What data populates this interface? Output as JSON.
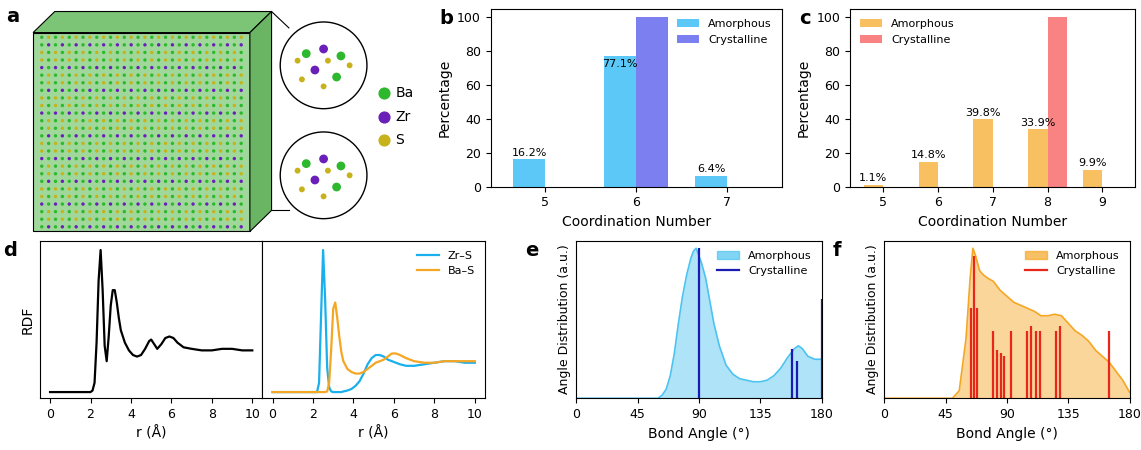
{
  "structure": {
    "panel": "a",
    "legend": [
      {
        "name": "Ba",
        "color": "#2db82d"
      },
      {
        "name": "Zr",
        "color": "#6a1fb8"
      },
      {
        "name": "S",
        "color": "#c7b21b"
      }
    ]
  },
  "chart_data": [
    {
      "panel": "b",
      "type": "bar",
      "xlabel": "Coordination Number",
      "ylabel": "Percentage",
      "x": [
        5,
        6,
        7
      ],
      "xlim": [
        4.4,
        7.6
      ],
      "xticks": [
        5,
        6,
        7
      ],
      "ylim": [
        0,
        105
      ],
      "yticks": [
        0,
        20,
        40,
        60,
        80,
        100
      ],
      "legend": "upper right",
      "data_labels": true,
      "series": [
        {
          "name": "Amorphous",
          "color": "#5bc8f7",
          "values": [
            16.2,
            77.1,
            6.4
          ],
          "value_labels": [
            "16.2%",
            "77.1%",
            "6.4%"
          ]
        },
        {
          "name": "Crystalline",
          "color": "#7b7ff0",
          "values": [
            0,
            100,
            0
          ]
        }
      ]
    },
    {
      "panel": "c",
      "type": "bar",
      "xlabel": "Coordination Number",
      "ylabel": "Percentage",
      "x": [
        5,
        6,
        7,
        8,
        9
      ],
      "xlim": [
        4.4,
        9.6
      ],
      "xticks": [
        5,
        6,
        7,
        8,
        9
      ],
      "ylim": [
        0,
        105
      ],
      "yticks": [
        0,
        20,
        40,
        60,
        80,
        100
      ],
      "legend": "upper left",
      "data_labels": true,
      "series": [
        {
          "name": "Amorphous",
          "color": "#f8c060",
          "values": [
            1.1,
            14.8,
            39.8,
            33.9,
            9.9
          ],
          "value_labels": [
            "1.1%",
            "14.8%",
            "39.8%",
            "33.9%",
            "9.9%"
          ]
        },
        {
          "name": "Crystalline",
          "color": "#f98282",
          "values": [
            0,
            0,
            0,
            100,
            0
          ]
        }
      ]
    },
    {
      "panel": "d",
      "type": "line",
      "xlabel": "r (Å)",
      "ylabel": "RDF",
      "x": [
        0,
        1,
        2,
        2.1,
        2.2,
        2.3,
        2.4,
        2.5,
        2.6,
        2.7,
        2.8,
        2.9,
        3.0,
        3.1,
        3.2,
        3.3,
        3.4,
        3.5,
        3.7,
        3.9,
        4.1,
        4.3,
        4.5,
        4.7,
        4.9,
        5.0,
        5.1,
        5.3,
        5.5,
        5.7,
        5.9,
        6.1,
        6.3,
        6.6,
        7.0,
        7.5,
        8.0,
        8.5,
        9.0,
        9.5,
        10.0
      ],
      "xlim": [
        -0.5,
        10.5
      ],
      "xticks": [
        0,
        2,
        4,
        6,
        8,
        10
      ],
      "ylim": [
        -0.2,
        4.9
      ],
      "tick_labels": "x",
      "series": [
        {
          "color": "#000000",
          "type": "line",
          "values": [
            0,
            0,
            0,
            0.05,
            0.3,
            1.6,
            3.6,
            4.6,
            3.3,
            1.5,
            1.0,
            1.8,
            2.8,
            3.3,
            3.3,
            2.9,
            2.4,
            2.0,
            1.6,
            1.35,
            1.2,
            1.15,
            1.2,
            1.4,
            1.65,
            1.7,
            1.6,
            1.4,
            1.55,
            1.75,
            1.8,
            1.75,
            1.6,
            1.45,
            1.4,
            1.35,
            1.35,
            1.4,
            1.4,
            1.35,
            1.35
          ]
        }
      ]
    },
    {
      "type": "line",
      "xlabel": "r (Å)",
      "x": [
        0,
        1,
        2,
        2.1,
        2.2,
        2.3,
        2.4,
        2.5,
        2.6,
        2.7,
        2.8,
        2.9,
        3.0,
        3.1,
        3.2,
        3.3,
        3.4,
        3.5,
        3.7,
        3.9,
        4.1,
        4.3,
        4.5,
        4.7,
        4.9,
        5.0,
        5.1,
        5.3,
        5.5,
        5.7,
        5.9,
        6.1,
        6.3,
        6.6,
        7.0,
        7.5,
        8.0,
        8.5,
        9.0,
        9.5,
        10.0
      ],
      "xlim": [
        -0.5,
        10.5
      ],
      "xticks": [
        0,
        2,
        4,
        6,
        8,
        10
      ],
      "ylim": [
        -0.2,
        4.9
      ],
      "tick_labels": "x",
      "legend": "upper right",
      "series": [
        {
          "name": "Zr–S",
          "color": "#1ab0ee",
          "type": "line",
          "values": [
            0,
            0,
            0,
            0,
            0,
            0.3,
            2.5,
            4.6,
            3.0,
            0.8,
            0.15,
            0.02,
            0,
            0,
            0,
            0,
            0,
            0.02,
            0.05,
            0.1,
            0.2,
            0.35,
            0.6,
            0.9,
            1.1,
            1.15,
            1.2,
            1.2,
            1.15,
            1.05,
            1.0,
            0.95,
            0.9,
            0.85,
            0.85,
            0.9,
            0.95,
            1.0,
            1.0,
            0.95,
            0.95
          ]
        },
        {
          "name": "Ba–S",
          "color": "#f5a623",
          "type": "line",
          "values": [
            0,
            0,
            0,
            0,
            0,
            0,
            0,
            0,
            0,
            0.02,
            0.3,
            1.4,
            2.7,
            2.9,
            2.4,
            1.8,
            1.3,
            1.0,
            0.75,
            0.65,
            0.6,
            0.6,
            0.65,
            0.75,
            0.85,
            0.9,
            0.95,
            1.0,
            1.05,
            1.15,
            1.25,
            1.25,
            1.2,
            1.1,
            1.0,
            0.95,
            0.95,
            1.0,
            1.0,
            1.0,
            1.0
          ]
        }
      ]
    },
    {
      "panel": "e",
      "type": "line",
      "xlabel": "Bond Angle (°)",
      "ylabel": "Angle Distribution (a.u.)",
      "xlim": [
        0,
        180
      ],
      "xticks": [
        0,
        45,
        90,
        135,
        180
      ],
      "ylim": [
        0,
        1.05
      ],
      "tick_labels": "x",
      "legend": "upper right",
      "series": [
        {
          "name": "Amorphous",
          "color": "#4cc3f0",
          "type": "area",
          "x": [
            0,
            60,
            63,
            66,
            69,
            72,
            75,
            78,
            81,
            84,
            86,
            88,
            90,
            92,
            95,
            98,
            101,
            105,
            110,
            115,
            120,
            125,
            130,
            135,
            140,
            145,
            150,
            155,
            160,
            163,
            166,
            170,
            175,
            180
          ],
          "values": [
            0,
            0,
            0.02,
            0.06,
            0.15,
            0.3,
            0.5,
            0.68,
            0.82,
            0.93,
            0.98,
            1.0,
            0.95,
            0.9,
            0.8,
            0.65,
            0.5,
            0.35,
            0.22,
            0.16,
            0.13,
            0.12,
            0.11,
            0.11,
            0.12,
            0.15,
            0.2,
            0.27,
            0.33,
            0.35,
            0.33,
            0.28,
            0.26,
            0.26
          ]
        },
        {
          "name": "Crystalline",
          "color": "#1a1ab4",
          "type": "stem",
          "x": [
            90,
            158,
            162,
            180
          ],
          "values": [
            1.0,
            0.33,
            0.25,
            0.66
          ]
        }
      ]
    },
    {
      "panel": "f",
      "type": "line",
      "xlabel": "Bond Angle (°)",
      "ylabel": "Angle Distribution (a.u.)",
      "xlim": [
        0,
        180
      ],
      "xticks": [
        0,
        45,
        90,
        135,
        180
      ],
      "ylim": [
        0,
        1.05
      ],
      "tick_labels": "x",
      "legend": "upper right",
      "series": [
        {
          "name": "Amorphous",
          "color": "#f5a623",
          "type": "area",
          "x": [
            0,
            50,
            55,
            60,
            63,
            65,
            67,
            70,
            73,
            76,
            80,
            85,
            90,
            95,
            100,
            105,
            110,
            115,
            120,
            125,
            130,
            135,
            140,
            145,
            150,
            155,
            160,
            165,
            170,
            175,
            180
          ],
          "values": [
            0,
            0,
            0.05,
            0.4,
            0.8,
            1.0,
            0.95,
            0.85,
            0.82,
            0.8,
            0.78,
            0.72,
            0.68,
            0.64,
            0.62,
            0.6,
            0.58,
            0.55,
            0.55,
            0.56,
            0.55,
            0.5,
            0.45,
            0.42,
            0.38,
            0.32,
            0.28,
            0.24,
            0.18,
            0.12,
            0.04
          ]
        },
        {
          "name": "Crystalline",
          "color": "#e8261a",
          "type": "stem",
          "x": [
            64,
            66,
            68,
            80,
            83,
            86,
            88,
            93,
            105,
            108,
            111,
            114,
            126,
            129,
            165
          ],
          "values": [
            0.6,
            0.95,
            0.6,
            0.45,
            0.32,
            0.3,
            0.28,
            0.45,
            0.45,
            0.48,
            0.45,
            0.45,
            0.45,
            0.48,
            0.45
          ]
        }
      ]
    }
  ]
}
